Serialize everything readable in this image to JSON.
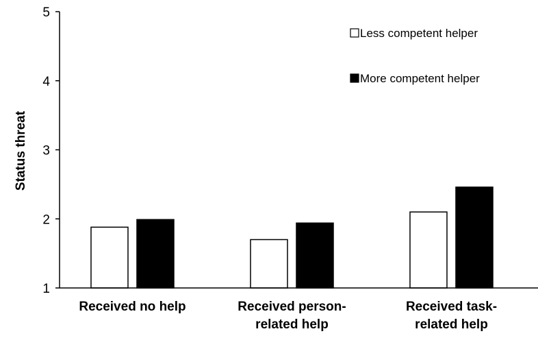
{
  "chart_data": {
    "type": "bar",
    "categories": [
      [
        "Received no help"
      ],
      [
        "Received person-",
        "related help"
      ],
      [
        "Received task-",
        "related help"
      ]
    ],
    "series": [
      {
        "name": "Less competent helper",
        "values": [
          1.88,
          1.7,
          2.1
        ],
        "fill": "#ffffff",
        "stroke": "#000000"
      },
      {
        "name": "More competent helper",
        "values": [
          1.99,
          1.94,
          2.46
        ],
        "fill": "#000000",
        "stroke": "#000000"
      }
    ],
    "ylabel": "Status threat",
    "ylim": [
      1,
      5
    ],
    "yticks": [
      1,
      2,
      3,
      4,
      5
    ],
    "grid": false,
    "legend_position": "top-right"
  }
}
